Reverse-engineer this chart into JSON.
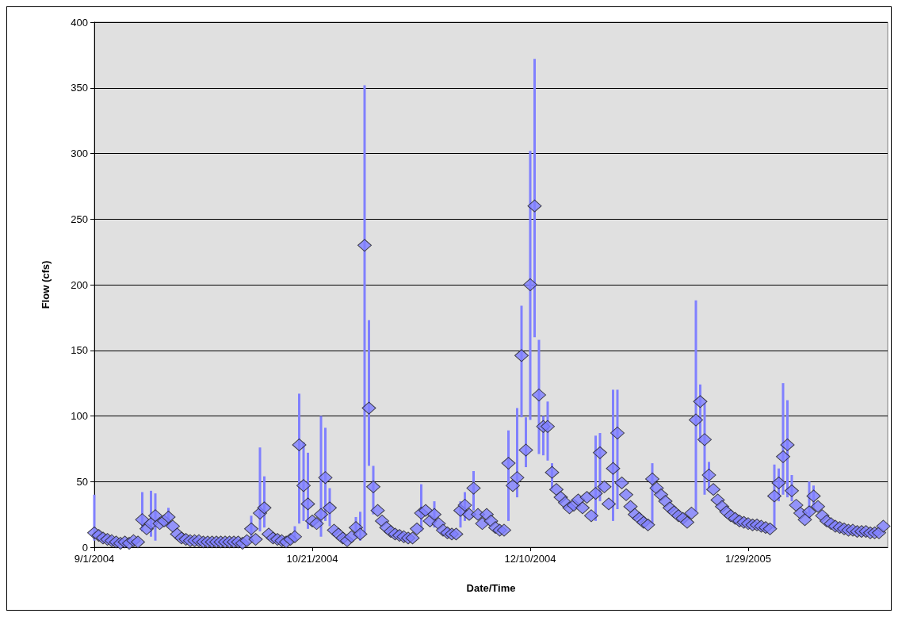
{
  "chart_data": {
    "type": "scatter",
    "xlabel": "Date/Time",
    "ylabel": "Flow (cfs)",
    "color": "#8080ff",
    "marker": "diamond",
    "grid": "y",
    "xlim": [
      "2004-09-01",
      "2005-03-02"
    ],
    "xticks": [
      {
        "value": "2004-09-01",
        "label": "9/1/2004"
      },
      {
        "value": "2004-10-21",
        "label": "10/21/2004"
      },
      {
        "value": "2004-12-10",
        "label": "12/10/2004"
      },
      {
        "value": "2005-01-29",
        "label": "1/29/2005"
      }
    ],
    "ylim": [
      0,
      400
    ],
    "yticks": [
      0,
      50,
      100,
      150,
      200,
      250,
      300,
      350,
      400
    ],
    "x": [
      "2004-09-01",
      "2004-09-02",
      "2004-09-03",
      "2004-09-04",
      "2004-09-05",
      "2004-09-06",
      "2004-09-07",
      "2004-09-08",
      "2004-09-09",
      "2004-09-10",
      "2004-09-11",
      "2004-09-12",
      "2004-09-13",
      "2004-09-14",
      "2004-09-15",
      "2004-09-16",
      "2004-09-17",
      "2004-09-18",
      "2004-09-19",
      "2004-09-20",
      "2004-09-21",
      "2004-09-22",
      "2004-09-23",
      "2004-09-24",
      "2004-09-25",
      "2004-09-26",
      "2004-09-27",
      "2004-09-28",
      "2004-09-29",
      "2004-09-30",
      "2004-10-01",
      "2004-10-02",
      "2004-10-03",
      "2004-10-04",
      "2004-10-05",
      "2004-10-06",
      "2004-10-07",
      "2004-10-08",
      "2004-10-09",
      "2004-10-10",
      "2004-10-11",
      "2004-10-12",
      "2004-10-13",
      "2004-10-14",
      "2004-10-15",
      "2004-10-16",
      "2004-10-17",
      "2004-10-18",
      "2004-10-19",
      "2004-10-20",
      "2004-10-21",
      "2004-10-22",
      "2004-10-23",
      "2004-10-24",
      "2004-10-25",
      "2004-10-26",
      "2004-10-27",
      "2004-10-28",
      "2004-10-29",
      "2004-10-30",
      "2004-10-31",
      "2004-11-01",
      "2004-11-02",
      "2004-11-03",
      "2004-11-04",
      "2004-11-05",
      "2004-11-06",
      "2004-11-07",
      "2004-11-08",
      "2004-11-09",
      "2004-11-10",
      "2004-11-11",
      "2004-11-12",
      "2004-11-13",
      "2004-11-14",
      "2004-11-15",
      "2004-11-16",
      "2004-11-17",
      "2004-11-18",
      "2004-11-19",
      "2004-11-20",
      "2004-11-21",
      "2004-11-22",
      "2004-11-23",
      "2004-11-24",
      "2004-11-25",
      "2004-11-26",
      "2004-11-27",
      "2004-11-28",
      "2004-11-29",
      "2004-11-30",
      "2004-12-01",
      "2004-12-02",
      "2004-12-03",
      "2004-12-04",
      "2004-12-05",
      "2004-12-06",
      "2004-12-07",
      "2004-12-08",
      "2004-12-09",
      "2004-12-10",
      "2004-12-11",
      "2004-12-12",
      "2004-12-13",
      "2004-12-14",
      "2004-12-15",
      "2004-12-16",
      "2004-12-17",
      "2004-12-18",
      "2004-12-19",
      "2004-12-20",
      "2004-12-21",
      "2004-12-22",
      "2004-12-23",
      "2004-12-24",
      "2004-12-25",
      "2004-12-26",
      "2004-12-27",
      "2004-12-28",
      "2004-12-29",
      "2004-12-30",
      "2004-12-31",
      "2005-01-01",
      "2005-01-02",
      "2005-01-03",
      "2005-01-04",
      "2005-01-05",
      "2005-01-06",
      "2005-01-07",
      "2005-01-08",
      "2005-01-09",
      "2005-01-10",
      "2005-01-11",
      "2005-01-12",
      "2005-01-13",
      "2005-01-14",
      "2005-01-15",
      "2005-01-16",
      "2005-01-17",
      "2005-01-18",
      "2005-01-19",
      "2005-01-20",
      "2005-01-21",
      "2005-01-22",
      "2005-01-23",
      "2005-01-24",
      "2005-01-25",
      "2005-01-26",
      "2005-01-27",
      "2005-01-28",
      "2005-01-29",
      "2005-01-30",
      "2005-01-31",
      "2005-02-01",
      "2005-02-02",
      "2005-02-03",
      "2005-02-04",
      "2005-02-05",
      "2005-02-06",
      "2005-02-07",
      "2005-02-08",
      "2005-02-09",
      "2005-02-10",
      "2005-02-11",
      "2005-02-12",
      "2005-02-13",
      "2005-02-14",
      "2005-02-15",
      "2005-02-16",
      "2005-02-17",
      "2005-02-18",
      "2005-02-19",
      "2005-02-20",
      "2005-02-21",
      "2005-02-22",
      "2005-02-23",
      "2005-02-24",
      "2005-02-25",
      "2005-02-26",
      "2005-02-27",
      "2005-02-28",
      "2005-03-01"
    ],
    "values": [
      11,
      9,
      7,
      6,
      5,
      4,
      3,
      4,
      3,
      5,
      4,
      21,
      14,
      18,
      24,
      18,
      20,
      23,
      16,
      10,
      7,
      6,
      5,
      5,
      5,
      4,
      4,
      4,
      4,
      4,
      4,
      4,
      4,
      4,
      3,
      5,
      14,
      6,
      26,
      30,
      10,
      7,
      6,
      5,
      4,
      6,
      8,
      78,
      47,
      33,
      20,
      18,
      25,
      53,
      30,
      13,
      10,
      7,
      5,
      8,
      15,
      10,
      230,
      106,
      46,
      28,
      20,
      15,
      12,
      10,
      9,
      8,
      7,
      7,
      14,
      26,
      28,
      20,
      25,
      18,
      13,
      11,
      10,
      10,
      28,
      32,
      25,
      45,
      25,
      18,
      25,
      20,
      15,
      13,
      13,
      64,
      47,
      53,
      146,
      74,
      200,
      260,
      116,
      92,
      92,
      57,
      44,
      38,
      34,
      30,
      32,
      36,
      30,
      38,
      24,
      41,
      72,
      46,
      33,
      60,
      87,
      49,
      40,
      31,
      25,
      22,
      19,
      17,
      52,
      45,
      40,
      35,
      30,
      27,
      24,
      22,
      19,
      26,
      97,
      111,
      82,
      55,
      44,
      36,
      31,
      27,
      24,
      22,
      20,
      19,
      18,
      17,
      17,
      16,
      15,
      14,
      39,
      49,
      69,
      78,
      43,
      32,
      26,
      21,
      27,
      39,
      31,
      24,
      20,
      18,
      16,
      15,
      14,
      13,
      13,
      12,
      12,
      12,
      11,
      11,
      11,
      16
    ],
    "errors": [
      [
        5,
        40
      ],
      null,
      null,
      null,
      null,
      null,
      null,
      null,
      null,
      null,
      null,
      [
        12,
        42
      ],
      null,
      [
        8,
        43
      ],
      [
        5,
        41
      ],
      null,
      null,
      [
        15,
        30
      ],
      null,
      null,
      null,
      null,
      null,
      null,
      null,
      null,
      null,
      null,
      null,
      null,
      null,
      null,
      null,
      null,
      null,
      null,
      [
        5,
        24
      ],
      null,
      [
        12,
        76
      ],
      [
        15,
        54
      ],
      null,
      null,
      null,
      null,
      null,
      null,
      [
        5,
        16
      ],
      [
        18,
        117
      ],
      [
        20,
        80
      ],
      [
        14,
        72
      ],
      null,
      null,
      [
        8,
        100
      ],
      [
        20,
        91
      ],
      [
        16,
        45
      ],
      null,
      null,
      null,
      null,
      null,
      [
        8,
        23
      ],
      [
        5,
        27
      ],
      [
        10,
        352
      ],
      [
        62,
        173
      ],
      [
        25,
        62
      ],
      null,
      null,
      null,
      null,
      null,
      null,
      null,
      null,
      null,
      null,
      [
        12,
        48
      ],
      null,
      null,
      [
        15,
        35
      ],
      null,
      null,
      null,
      null,
      null,
      [
        15,
        35
      ],
      [
        20,
        42
      ],
      null,
      [
        28,
        58
      ],
      null,
      null,
      null,
      null,
      null,
      null,
      null,
      [
        20,
        89
      ],
      null,
      [
        38,
        106
      ],
      [
        99,
        184
      ],
      [
        61,
        99
      ],
      [
        97,
        302
      ],
      [
        160,
        372
      ],
      [
        71,
        158
      ],
      [
        70,
        100
      ],
      [
        66,
        111
      ],
      [
        44,
        64
      ],
      null,
      null,
      null,
      null,
      null,
      null,
      null,
      null,
      null,
      [
        20,
        85
      ],
      [
        35,
        87
      ],
      null,
      null,
      [
        20,
        120
      ],
      [
        29,
        120
      ],
      null,
      null,
      null,
      null,
      null,
      null,
      null,
      [
        18,
        64
      ],
      null,
      null,
      null,
      null,
      null,
      null,
      null,
      null,
      null,
      [
        27,
        188
      ],
      [
        80,
        124
      ],
      [
        40,
        110
      ],
      [
        45,
        65
      ],
      null,
      null,
      null,
      null,
      null,
      null,
      null,
      null,
      null,
      null,
      null,
      null,
      null,
      null,
      [
        14,
        63
      ],
      [
        35,
        60
      ],
      [
        40,
        125
      ],
      [
        38,
        112
      ],
      [
        35,
        55
      ],
      null,
      null,
      null,
      [
        22,
        50
      ],
      [
        30,
        47
      ],
      null,
      null,
      null,
      null,
      null,
      null,
      null,
      null,
      null,
      null,
      null,
      null,
      null,
      null,
      null,
      null
    ]
  }
}
